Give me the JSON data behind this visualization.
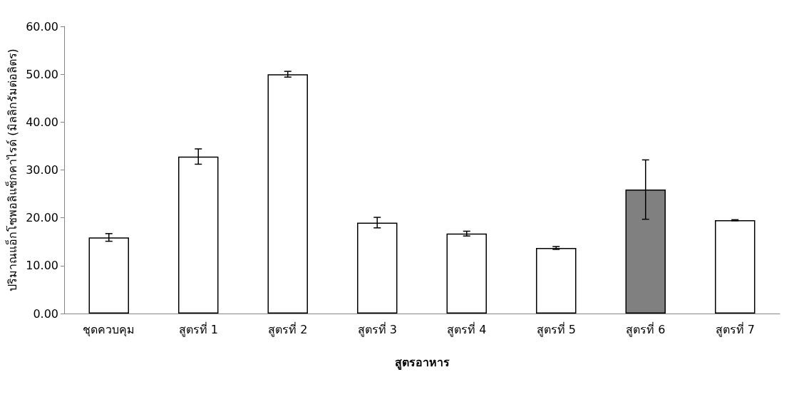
{
  "chart_data": {
    "type": "bar",
    "xlabel": "สูตรอาหาร",
    "ylabel": "ปริมาณแอ็กโซพอลิแซ็กคาไรด์ (มิลลิกรัมต่อลิตร)",
    "categories": [
      "ชุดควบคุม",
      "สูตรที่ 1",
      "สูตรที่ 2",
      "สูตรที่ 3",
      "สูตรที่ 4",
      "สูตรที่ 5",
      "สูตรที่ 6",
      "สูตรที่ 7"
    ],
    "values": [
      15.9,
      32.8,
      50.0,
      19.0,
      16.7,
      13.7,
      25.9,
      19.5
    ],
    "errors": [
      0.8,
      1.6,
      0.6,
      1.1,
      0.5,
      0.3,
      6.2,
      0.1
    ],
    "colors": [
      "#ffffff",
      "#ffffff",
      "#ffffff",
      "#ffffff",
      "#ffffff",
      "#ffffff",
      "#808080",
      "#ffffff"
    ],
    "ylim": [
      0,
      60
    ],
    "yticks": [
      {
        "value": 0,
        "label": "0.00"
      },
      {
        "value": 10,
        "label": "10.00"
      },
      {
        "value": 20,
        "label": "20.00"
      },
      {
        "value": 30,
        "label": "30.00"
      },
      {
        "value": 40,
        "label": "40.00"
      },
      {
        "value": 50,
        "label": "50.00"
      },
      {
        "value": 60,
        "label": "60.00"
      }
    ],
    "grid": false
  }
}
